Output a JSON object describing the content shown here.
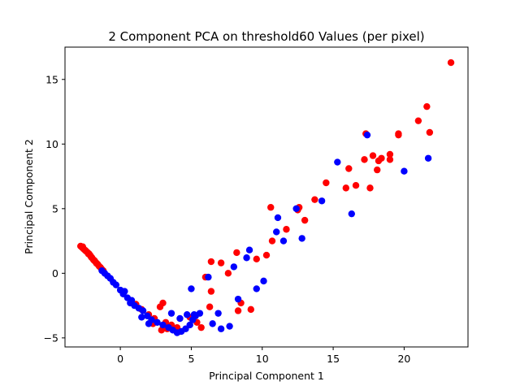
{
  "colors": {
    "red": "#ff0000",
    "blue": "#0000ff",
    "axis": "#000000",
    "background": "#ffffff"
  },
  "chart_data": {
    "type": "scatter",
    "title": "2 Component PCA on threshold60 Values (per pixel)",
    "xlabel": "Principal Component 1",
    "ylabel": "Principal Component 2",
    "xlim": [
      -3.9,
      24.5
    ],
    "ylim": [
      -5.7,
      17.5
    ],
    "xticks": [
      0,
      5,
      10,
      15,
      20
    ],
    "yticks": [
      -5,
      0,
      5,
      10,
      15
    ],
    "grid": false,
    "legend": "none",
    "series": [
      {
        "color": "#ff0000",
        "points": [
          [
            -2.8,
            2.1
          ],
          [
            -2.7,
            2.0
          ],
          [
            -2.6,
            1.9
          ],
          [
            -2.5,
            1.8
          ],
          [
            -2.4,
            1.7
          ],
          [
            -2.3,
            1.6
          ],
          [
            -2.2,
            1.5
          ],
          [
            -2.1,
            1.35
          ],
          [
            -2.0,
            1.2
          ],
          [
            -1.9,
            1.05
          ],
          [
            -1.8,
            0.95
          ],
          [
            -1.7,
            0.8
          ],
          [
            -1.6,
            0.7
          ],
          [
            -1.5,
            0.55
          ],
          [
            -1.4,
            0.45
          ],
          [
            -1.3,
            0.3
          ],
          [
            -1.2,
            0.2
          ],
          [
            -2.65,
            2.05
          ],
          [
            -2.45,
            1.75
          ],
          [
            -2.25,
            1.5
          ],
          [
            -2.05,
            1.25
          ],
          [
            -1.85,
            1.0
          ],
          [
            -1.65,
            0.75
          ],
          [
            1.1,
            -2.4
          ],
          [
            1.5,
            -2.8
          ],
          [
            2.0,
            -3.2
          ],
          [
            2.4,
            -3.5
          ],
          [
            2.8,
            -2.6
          ],
          [
            3.0,
            -2.3
          ],
          [
            2.3,
            -3.9
          ],
          [
            3.2,
            -3.8
          ],
          [
            3.3,
            -4.3
          ],
          [
            2.9,
            -4.4
          ],
          [
            3.6,
            -4.0
          ],
          [
            4.0,
            -4.2
          ],
          [
            4.9,
            -3.4
          ],
          [
            4.2,
            -4.5
          ],
          [
            5.4,
            -3.8
          ],
          [
            5.7,
            -4.2
          ],
          [
            6.4,
            -1.4
          ],
          [
            6.3,
            -2.6
          ],
          [
            6.0,
            -0.3
          ],
          [
            6.4,
            0.9
          ],
          [
            7.1,
            0.8
          ],
          [
            7.6,
            0.0
          ],
          [
            8.2,
            1.6
          ],
          [
            8.3,
            -2.9
          ],
          [
            8.5,
            -2.3
          ],
          [
            9.2,
            -2.8
          ],
          [
            9.6,
            1.1
          ],
          [
            10.3,
            1.4
          ],
          [
            10.6,
            5.1
          ],
          [
            10.7,
            2.5
          ],
          [
            11.7,
            3.4
          ],
          [
            12.5,
            4.9
          ],
          [
            12.6,
            5.1
          ],
          [
            13.0,
            4.1
          ],
          [
            13.7,
            5.7
          ],
          [
            14.5,
            7.0
          ],
          [
            15.9,
            6.6
          ],
          [
            16.1,
            8.1
          ],
          [
            16.6,
            6.8
          ],
          [
            17.2,
            8.8
          ],
          [
            17.3,
            10.8
          ],
          [
            17.6,
            6.6
          ],
          [
            17.8,
            9.1
          ],
          [
            18.1,
            8.0
          ],
          [
            18.2,
            8.7
          ],
          [
            18.4,
            8.9
          ],
          [
            19.0,
            9.2
          ],
          [
            19.0,
            8.8
          ],
          [
            19.6,
            10.7
          ],
          [
            19.6,
            10.8
          ],
          [
            21.0,
            11.8
          ],
          [
            21.6,
            12.9
          ],
          [
            21.8,
            10.9
          ],
          [
            23.3,
            16.3
          ]
        ]
      },
      {
        "color": "#0000ff",
        "points": [
          [
            -1.3,
            0.2
          ],
          [
            -1.1,
            0.0
          ],
          [
            -0.9,
            -0.2
          ],
          [
            -0.7,
            -0.4
          ],
          [
            -0.5,
            -0.7
          ],
          [
            -0.3,
            -0.9
          ],
          [
            0.0,
            -1.3
          ],
          [
            0.2,
            -1.6
          ],
          [
            0.5,
            -1.9
          ],
          [
            0.8,
            -2.1
          ],
          [
            1.0,
            -2.5
          ],
          [
            1.3,
            -2.7
          ],
          [
            1.6,
            -2.9
          ],
          [
            1.9,
            -3.3
          ],
          [
            2.2,
            -3.6
          ],
          [
            2.6,
            -3.8
          ],
          [
            3.0,
            -4.0
          ],
          [
            3.4,
            -4.2
          ],
          [
            3.7,
            -4.4
          ],
          [
            4.0,
            -4.6
          ],
          [
            4.3,
            -4.5
          ],
          [
            4.6,
            -4.3
          ],
          [
            4.9,
            -4.0
          ],
          [
            5.1,
            -3.6
          ],
          [
            5.3,
            -3.3
          ],
          [
            5.6,
            -3.1
          ],
          [
            0.3,
            -1.4
          ],
          [
            0.7,
            -2.3
          ],
          [
            1.5,
            -3.4
          ],
          [
            2.0,
            -3.9
          ],
          [
            3.6,
            -3.1
          ],
          [
            4.2,
            -3.5
          ],
          [
            4.7,
            -3.2
          ],
          [
            5.2,
            -3.2
          ],
          [
            5.0,
            -1.2
          ],
          [
            6.2,
            -0.3
          ],
          [
            6.5,
            -3.9
          ],
          [
            6.9,
            -3.1
          ],
          [
            7.1,
            -4.3
          ],
          [
            7.7,
            -4.1
          ],
          [
            8.0,
            0.5
          ],
          [
            8.3,
            -2.0
          ],
          [
            8.9,
            1.2
          ],
          [
            9.1,
            1.8
          ],
          [
            9.6,
            -1.2
          ],
          [
            10.1,
            -0.6
          ],
          [
            11.0,
            3.2
          ],
          [
            11.1,
            4.3
          ],
          [
            11.5,
            2.5
          ],
          [
            12.4,
            5.0
          ],
          [
            12.8,
            2.7
          ],
          [
            14.2,
            5.6
          ],
          [
            15.3,
            8.6
          ],
          [
            16.3,
            4.6
          ],
          [
            17.4,
            10.7
          ],
          [
            20.0,
            7.9
          ],
          [
            21.7,
            8.9
          ]
        ]
      }
    ]
  }
}
